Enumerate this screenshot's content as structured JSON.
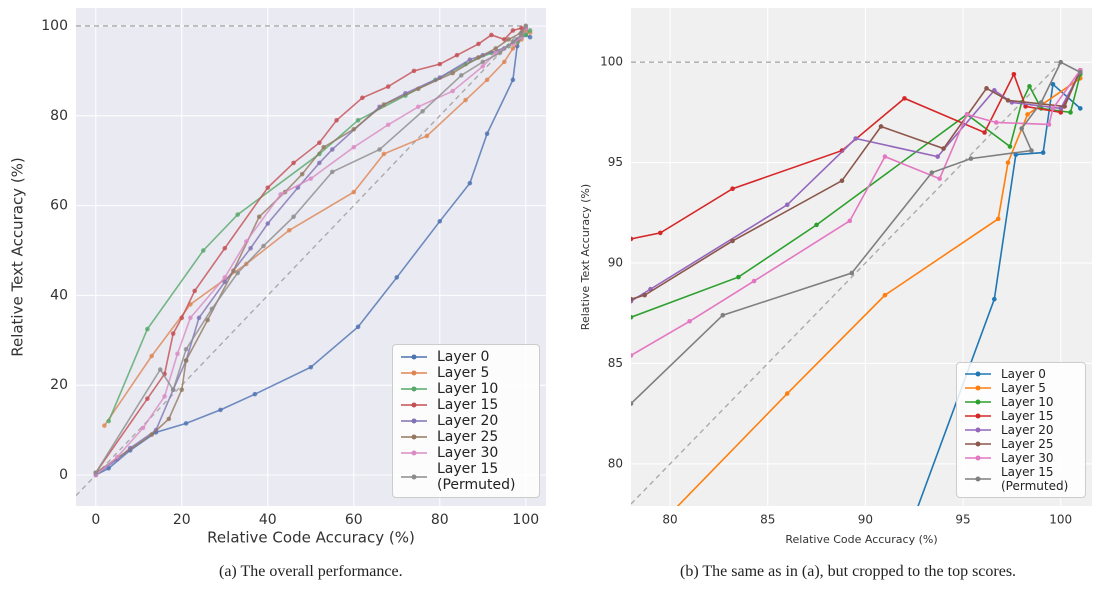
{
  "chart_data": [
    {
      "type": "line",
      "xlabel": "Relative Code Accuracy (%)",
      "ylabel": "Relative Text Accuracy (%)",
      "caption": "(a) The overall performance.",
      "xlim": [
        -4.6,
        104.7
      ],
      "ylim": [
        -6.9,
        104
      ],
      "xticks": [
        0,
        20,
        40,
        60,
        80,
        100
      ],
      "yticks": [
        0,
        20,
        40,
        60,
        80,
        100
      ],
      "grid": true,
      "legend": "lower right",
      "hline": 100,
      "identity_line": true,
      "series": [
        {
          "name": "Layer 0",
          "color": "#4c72b0",
          "x": [
            0,
            3,
            8,
            14,
            21,
            29,
            37,
            50,
            61,
            70,
            80,
            87,
            91,
            97,
            98,
            99,
            100,
            101
          ],
          "values": [
            0,
            1.5,
            5.5,
            9.5,
            11.5,
            14.5,
            18,
            24,
            33,
            44,
            56.5,
            65,
            76,
            88,
            95.5,
            97.5,
            98,
            97.5
          ]
        },
        {
          "name": "Layer 5",
          "color": "#dd8452",
          "x": [
            2,
            13,
            22,
            35,
            45,
            60,
            67,
            77,
            86,
            91,
            95,
            97,
            99,
            100,
            101
          ],
          "values": [
            11,
            26.5,
            38,
            47,
            54.5,
            63,
            71.5,
            75.5,
            83.5,
            88,
            92,
            95,
            97,
            99,
            98.5
          ]
        },
        {
          "name": "Layer 10",
          "color": "#55a868",
          "x": [
            3,
            12,
            25,
            33,
            52,
            61,
            72,
            79,
            86,
            92,
            96,
            98,
            100,
            101
          ],
          "values": [
            12,
            32.5,
            50,
            58,
            71.5,
            79,
            84.5,
            88,
            91.5,
            94,
            95.5,
            96.5,
            98,
            99
          ]
        },
        {
          "name": "Layer 15",
          "color": "#c44e52",
          "x": [
            0,
            12,
            16,
            18,
            20,
            23,
            30,
            40,
            46,
            52,
            56,
            62,
            68,
            74,
            80,
            84,
            89,
            92,
            95,
            97,
            99,
            100
          ],
          "values": [
            0.5,
            17,
            22.5,
            31.5,
            35,
            41,
            50.5,
            64,
            69.5,
            74,
            79,
            84,
            86.5,
            90,
            91.5,
            93.5,
            96,
            98,
            97,
            99,
            99.5,
            99.5
          ]
        },
        {
          "name": "Layer 20",
          "color": "#8172b3",
          "x": [
            0,
            5,
            8,
            14,
            18,
            21,
            24,
            30,
            36,
            40,
            47,
            52,
            55,
            66,
            72,
            80,
            87,
            90,
            95,
            98,
            99,
            100
          ],
          "values": [
            0,
            3.5,
            6,
            10,
            19,
            25.5,
            35,
            43,
            50.5,
            56,
            64,
            69.5,
            72.5,
            82,
            85,
            88.5,
            92.5,
            93.5,
            95,
            97,
            98,
            99.5
          ]
        },
        {
          "name": "Layer 25",
          "color": "#937860",
          "x": [
            0,
            13,
            17,
            20,
            21,
            26,
            32,
            38,
            44,
            48,
            53,
            60,
            67,
            75,
            83,
            89,
            93,
            96,
            99,
            100
          ],
          "values": [
            0.5,
            9,
            12.5,
            19,
            25.5,
            34.5,
            45.5,
            57.5,
            63,
            67,
            73,
            77,
            82.5,
            86,
            89.5,
            93,
            95,
            97,
            98.5,
            100
          ]
        },
        {
          "name": "Layer 30",
          "color": "#da8bc3",
          "x": [
            0,
            5,
            11,
            16,
            19,
            22,
            30,
            35,
            43,
            50,
            60,
            68,
            75,
            83,
            90,
            93,
            97,
            99,
            100
          ],
          "values": [
            0,
            4,
            10.5,
            17.5,
            27,
            35,
            44,
            52,
            62.5,
            66,
            73,
            78,
            82,
            85.5,
            91,
            94,
            96,
            97.5,
            99.5
          ]
        },
        {
          "name": "Layer 15 (Permuted)",
          "color": "#8c8c8c",
          "x": [
            0,
            15,
            18,
            21,
            27,
            33,
            39,
            46,
            55,
            66,
            76,
            85,
            90,
            94,
            97,
            99,
            100
          ],
          "values": [
            0.5,
            23.5,
            19,
            28,
            37,
            45,
            51,
            57.5,
            67.5,
            72.5,
            81,
            89,
            92,
            94,
            96.5,
            98,
            100
          ]
        }
      ]
    },
    {
      "type": "line",
      "xlabel": "Relative Code Accuracy (%)",
      "ylabel": "Relative Text Accuracy (%)",
      "caption": "(b) The same as in (a), but cropped to the top scores.",
      "xlim": [
        78,
        101.6
      ],
      "ylim": [
        77.9,
        102.7
      ],
      "xticks": [
        80,
        85,
        90,
        95,
        100
      ],
      "yticks": [
        80,
        85,
        90,
        95,
        100
      ],
      "grid": true,
      "legend": "lower right",
      "hline": 100,
      "identity_line": true,
      "series": [
        {
          "name": "Layer 0",
          "color": "#1f77b4",
          "x": [
            91.6,
            96.6,
            97.7,
            99.1,
            99.6,
            101
          ],
          "values": [
            75,
            88.2,
            95.4,
            95.5,
            98.9,
            97.7
          ]
        },
        {
          "name": "Layer 5",
          "color": "#ff7f0e",
          "x": [
            78,
            86,
            91,
            96.8,
            97.3,
            98.3,
            101
          ],
          "values": [
            75.5,
            83.5,
            88.4,
            92.2,
            95,
            97.4,
            99.2
          ]
        },
        {
          "name": "Layer 10",
          "color": "#2ca02c",
          "x": [
            78,
            83.5,
            87.5,
            95.2,
            97.4,
            98,
            98.4,
            99,
            100.5,
            101
          ],
          "values": [
            87.3,
            89.3,
            91.9,
            97.4,
            95.8,
            98,
            98.8,
            97.7,
            97.5,
            99.4
          ]
        },
        {
          "name": "Layer 15",
          "color": "#d62728",
          "x": [
            78,
            79.5,
            83.2,
            88.8,
            92,
            96.1,
            97.6,
            98.2,
            100,
            101
          ],
          "values": [
            91.2,
            91.5,
            93.7,
            95.6,
            98.2,
            96.5,
            99.4,
            97.8,
            97.5,
            99.6
          ]
        },
        {
          "name": "Layer 20",
          "color": "#9467bd",
          "x": [
            78,
            79,
            86,
            89.5,
            93.7,
            96.6,
            97.5,
            100,
            101
          ],
          "values": [
            88.1,
            88.7,
            92.9,
            96.2,
            95.3,
            98.6,
            98,
            97.7,
            99.5
          ]
        },
        {
          "name": "Layer 25",
          "color": "#8c564b",
          "x": [
            78,
            78.7,
            83.2,
            88.8,
            90.8,
            94,
            96.2,
            97.3,
            100.2,
            101
          ],
          "values": [
            88.2,
            88.4,
            91.1,
            94.1,
            96.8,
            95.7,
            98.7,
            98.1,
            97.8,
            99.6
          ]
        },
        {
          "name": "Layer 30",
          "color": "#e377c2",
          "x": [
            78,
            81,
            84.3,
            89.2,
            91,
            93.8,
            95.2,
            96.7,
            99.4,
            99.6,
            101
          ],
          "values": [
            85.4,
            87.1,
            89.1,
            92.1,
            95.3,
            94.2,
            97.4,
            97,
            96.9,
            97.7,
            99.6
          ]
        },
        {
          "name": "Layer 15 (Permuted)",
          "color": "#7f7f7f",
          "x": [
            78,
            82.7,
            89.3,
            93.4,
            95.4,
            98.5,
            98,
            99,
            100,
            101
          ],
          "values": [
            83,
            87.4,
            89.5,
            94.5,
            95.2,
            95.6,
            96.7,
            98,
            100,
            99.5
          ]
        }
      ]
    }
  ]
}
